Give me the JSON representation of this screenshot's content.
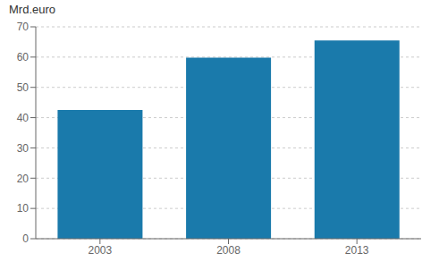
{
  "chart_data": {
    "type": "bar",
    "ylabel": "Mrd.euro",
    "categories": [
      "2003",
      "2008",
      "2013"
    ],
    "values": [
      42.5,
      59.8,
      65.5
    ],
    "color": "#1a7aab",
    "ylim": [
      0,
      70
    ],
    "yticks": [
      0,
      10,
      20,
      30,
      40,
      50,
      60,
      70
    ],
    "grid": true
  }
}
